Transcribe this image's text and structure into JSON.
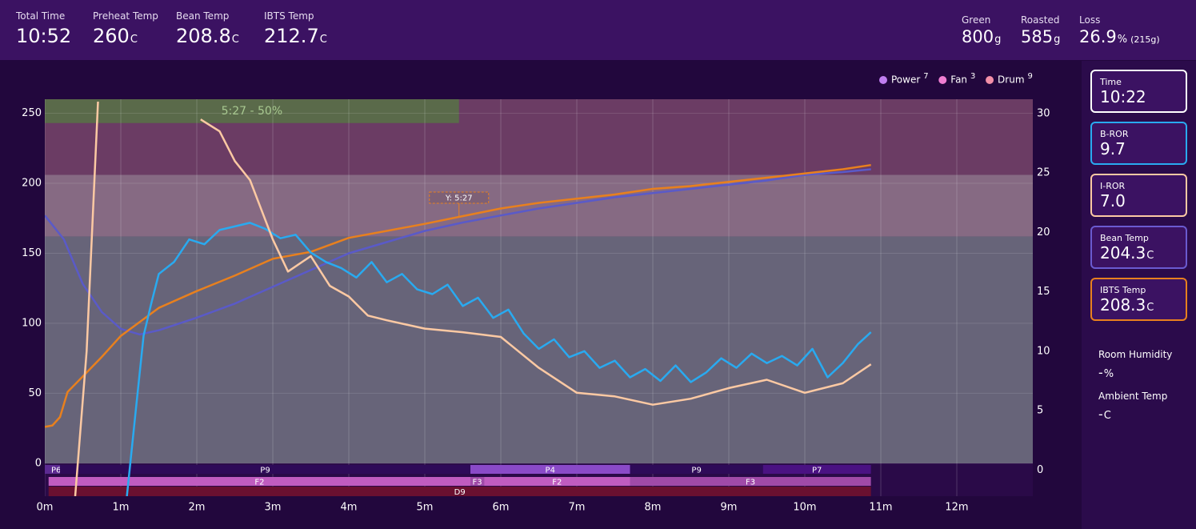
{
  "header": {
    "stats": [
      {
        "label": "Total Time",
        "value": "10:52"
      },
      {
        "label": "Preheat Temp",
        "value": "260",
        "unit": "C"
      },
      {
        "label": "Bean Temp",
        "value": "208.8",
        "unit": "C"
      },
      {
        "label": "IBTS Temp",
        "value": "212.7",
        "unit": "C"
      }
    ],
    "batch": [
      {
        "label": "Green",
        "value": "800",
        "unit": "g"
      },
      {
        "label": "Roasted",
        "value": "585",
        "unit": "g"
      },
      {
        "label": "Loss",
        "value": "26.9",
        "unit": "%",
        "extra": "(215g)"
      }
    ]
  },
  "sidebar": {
    "cards": [
      {
        "label": "Time",
        "value": "10:22",
        "color": "#ffffff"
      },
      {
        "label": "B-ROR",
        "value": "9.7",
        "color": "#29aaf0"
      },
      {
        "label": "I-ROR",
        "value": "7.0",
        "color": "#fcc9a3"
      },
      {
        "label": "Bean Temp",
        "value": "204.3",
        "unit": "C",
        "color": "#6a5ad0"
      },
      {
        "label": "IBTS Temp",
        "value": "208.3",
        "unit": "C",
        "color": "#e8801e"
      }
    ],
    "ambient": [
      {
        "label": "Room Humidity",
        "value": "-",
        "unit": "%"
      },
      {
        "label": "Ambient Temp",
        "value": "-",
        "unit": "C"
      }
    ]
  },
  "chart_data": {
    "type": "line",
    "xlim": [
      0,
      13
    ],
    "xticks": [
      {
        "value": 0,
        "label": "0m"
      },
      {
        "value": 1,
        "label": "1m"
      },
      {
        "value": 2,
        "label": "2m"
      },
      {
        "value": 3,
        "label": "3m"
      },
      {
        "value": 4,
        "label": "4m"
      },
      {
        "value": 5,
        "label": "5m"
      },
      {
        "value": 6,
        "label": "6m"
      },
      {
        "value": 7,
        "label": "7m"
      },
      {
        "value": 8,
        "label": "8m"
      },
      {
        "value": 9,
        "label": "9m"
      },
      {
        "value": 10,
        "label": "10m"
      },
      {
        "value": 11,
        "label": "11m"
      },
      {
        "value": 12,
        "label": "12m"
      }
    ],
    "ylim": [
      -23.5,
      260
    ],
    "yticks": [
      0,
      50,
      100,
      150,
      200,
      250
    ],
    "y2lim": [
      -2.2,
      31.2
    ],
    "y2ticks": [
      0,
      5,
      10,
      15,
      20,
      25,
      30
    ],
    "grid": true,
    "zones": [
      {
        "y0": 0,
        "y1": 162,
        "color": "#676479"
      },
      {
        "y0": 162,
        "y1": 206,
        "color": "#866a83"
      },
      {
        "y0": 206,
        "y1": 260,
        "color": "#6b3c64"
      }
    ],
    "phase": {
      "label": "5:27 - 50%",
      "start": 0,
      "end": 5.45,
      "y0": 243,
      "y1": 260,
      "color": "#5a6a4a"
    },
    "marker": {
      "label": "Y: 5:27",
      "x": 5.45,
      "y": 176
    },
    "legend_position": "top-right",
    "legend": [
      {
        "name": "Power",
        "value": 7,
        "color": "#c07ef0"
      },
      {
        "name": "Fan",
        "value": 3,
        "color": "#f07ed2"
      },
      {
        "name": "Drum",
        "value": 9,
        "color": "#f38fa8"
      }
    ],
    "series": [
      {
        "color": "#5a5ac8",
        "x": [
          0,
          0.25,
          0.5,
          0.75,
          1,
          1.25,
          1.5,
          2,
          2.5,
          3,
          3.5,
          4,
          4.5,
          5,
          5.5,
          6,
          6.5,
          7,
          7.5,
          8,
          8.5,
          9,
          9.5,
          10,
          10.5,
          10.87
        ],
        "values": [
          177,
          160,
          128,
          108,
          96,
          92,
          95,
          104,
          114,
          126,
          138,
          150,
          158,
          166,
          172,
          177,
          182,
          186,
          190,
          193,
          196,
          199,
          202,
          206,
          208,
          210
        ]
      },
      {
        "color": "#e8801e",
        "x": [
          0,
          0.1,
          0.2,
          0.3,
          0.5,
          0.75,
          1,
          1.5,
          2,
          2.5,
          3,
          3.5,
          4,
          4.5,
          5,
          5.45,
          6,
          6.5,
          7,
          7.5,
          8,
          8.5,
          9,
          9.5,
          10,
          10.5,
          10.87
        ],
        "values": [
          26,
          27,
          33,
          51,
          62,
          76,
          91,
          111,
          123,
          134,
          146,
          151,
          161,
          166,
          171,
          176,
          182,
          186,
          189,
          192,
          196,
          198,
          201,
          204,
          207,
          210,
          213
        ]
      },
      {
        "color": "#29aaf0",
        "axis": "y2",
        "x": [
          1.08,
          1.2,
          1.3,
          1.4,
          1.5,
          1.7,
          1.9,
          2.1,
          2.3,
          2.5,
          2.7,
          2.9,
          3.1,
          3.3,
          3.5,
          3.7,
          3.9,
          4.1,
          4.3,
          4.5,
          4.7,
          4.9,
          5.1,
          5.3,
          5.5,
          5.7,
          5.9,
          6.1,
          6.3,
          6.5,
          6.7,
          6.9,
          7.1,
          7.3,
          7.5,
          7.7,
          7.9,
          8.1,
          8.3,
          8.5,
          8.7,
          8.9,
          9.1,
          9.3,
          9.5,
          9.7,
          9.9,
          10.1,
          10.3,
          10.5,
          10.7,
          10.87
        ],
        "values": [
          -2.2,
          5.2,
          11.3,
          14,
          16.5,
          17.5,
          19.4,
          19,
          20.2,
          20.5,
          20.8,
          20.3,
          19.5,
          19.8,
          18.3,
          17.5,
          17,
          16.2,
          17.5,
          15.8,
          16.5,
          15.2,
          14.8,
          15.6,
          13.8,
          14.5,
          12.8,
          13.5,
          11.5,
          10.2,
          11,
          9.5,
          10,
          8.6,
          9.2,
          7.8,
          8.5,
          7.5,
          8.8,
          7.4,
          8.2,
          9.4,
          8.6,
          9.8,
          9,
          9.6,
          8.8,
          10.2,
          7.8,
          9,
          10.6,
          11.6
        ]
      },
      {
        "color": "#fcc9a3",
        "axis": "y2",
        "x": [
          0.4,
          0.55,
          0.7,
          1.0,
          2.05,
          2.3,
          2.5,
          2.7,
          3,
          3.2,
          3.5,
          3.75,
          4,
          4.25,
          4.5,
          5,
          5.5,
          6,
          6.5,
          7,
          7.5,
          8,
          8.5,
          9,
          9.5,
          10,
          10.5,
          10.87
        ],
        "values": [
          -2.2,
          10,
          31,
          null,
          29.5,
          28.5,
          26,
          24.4,
          19.4,
          16.7,
          18,
          15.5,
          14.6,
          13,
          12.6,
          11.9,
          11.6,
          11.2,
          8.6,
          6.5,
          6.2,
          5.5,
          6,
          6.9,
          7.6,
          6.5,
          7.3,
          8.9
        ]
      }
    ],
    "events": [
      {
        "row": 0,
        "label": "P6",
        "start": 0,
        "end": 0.2,
        "color": "#5c2a92"
      },
      {
        "row": 0,
        "label": "P9",
        "start": 0.2,
        "end": 5.6,
        "color": "#2e0b58"
      },
      {
        "row": 0,
        "label": "P4",
        "start": 5.6,
        "end": 7.7,
        "color": "#8a4ac8"
      },
      {
        "row": 0,
        "label": "P9",
        "start": 7.7,
        "end": 9.45,
        "color": "#2e0b58"
      },
      {
        "row": 0,
        "label": "P7",
        "start": 9.45,
        "end": 10.87,
        "color": "#4a1282"
      },
      {
        "row": 1,
        "label": "F2",
        "start": 0.05,
        "end": 5.6,
        "color": "#c05cc0"
      },
      {
        "row": 1,
        "label": "F3",
        "start": 5.6,
        "end": 5.78,
        "color": "#a04aa8"
      },
      {
        "row": 1,
        "label": "F2",
        "start": 5.78,
        "end": 7.7,
        "color": "#c05cc0"
      },
      {
        "row": 1,
        "label": "F3",
        "start": 7.7,
        "end": 10.87,
        "color": "#a04aa8"
      },
      {
        "row": 2,
        "label": "D9",
        "start": 0.05,
        "end": 10.87,
        "color": "#6a1030"
      }
    ]
  }
}
